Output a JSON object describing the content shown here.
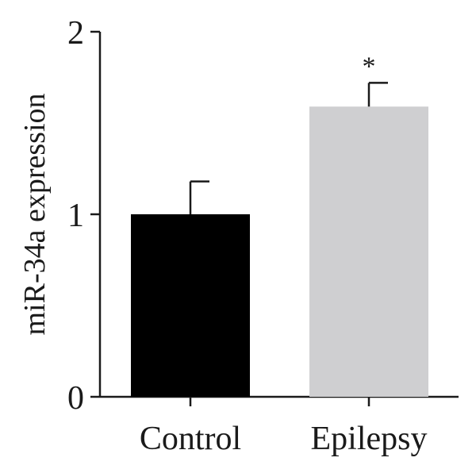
{
  "chart_data": {
    "type": "bar",
    "title": "",
    "xlabel": "",
    "ylabel": "miR-34a expression",
    "ylim": [
      0,
      2
    ],
    "yticks": [
      0,
      1,
      2
    ],
    "ytick_labels": [
      "0",
      "1",
      "2"
    ],
    "categories": [
      "Control",
      "Epilepsy"
    ],
    "values": [
      1.0,
      1.59
    ],
    "errors": [
      0.18,
      0.13
    ],
    "bar_colors": [
      "#000000",
      "#cfcfd1"
    ],
    "significance": [
      "",
      "*"
    ],
    "grid": false,
    "legend": "none"
  }
}
